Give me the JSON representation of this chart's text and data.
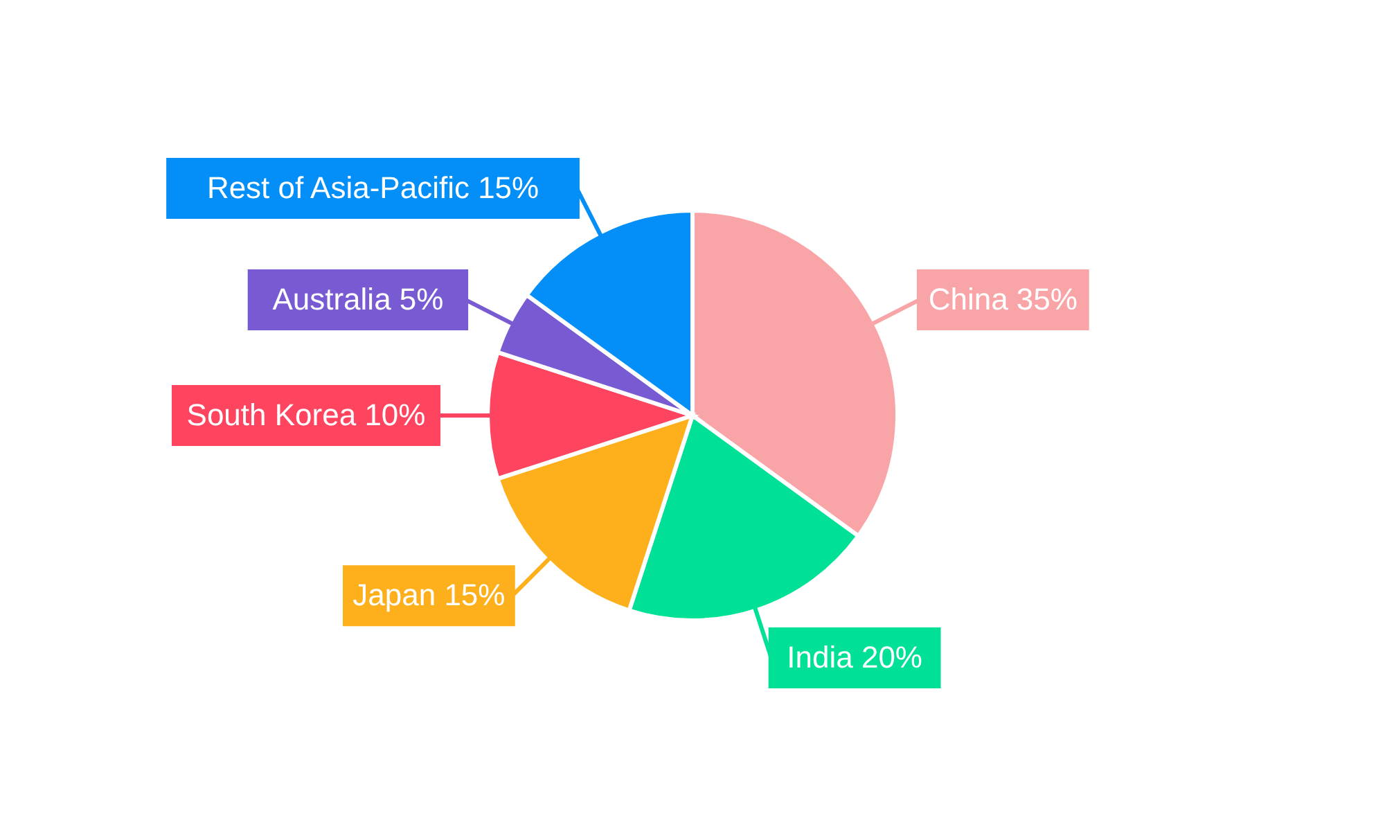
{
  "chart_data": {
    "type": "pie",
    "categories": [
      "China",
      "India",
      "Japan",
      "South Korea",
      "Australia",
      "Rest of Asia-Pacific"
    ],
    "values": [
      35,
      20,
      15,
      10,
      5,
      15
    ],
    "value_labels": [
      "35%",
      "20%",
      "15%",
      "10%",
      "5%",
      "15%"
    ],
    "colors": [
      "#f9a5a7",
      "#00e096",
      "#fdb01b",
      "#ff445f",
      "#785bd3",
      "#038ff7"
    ]
  }
}
